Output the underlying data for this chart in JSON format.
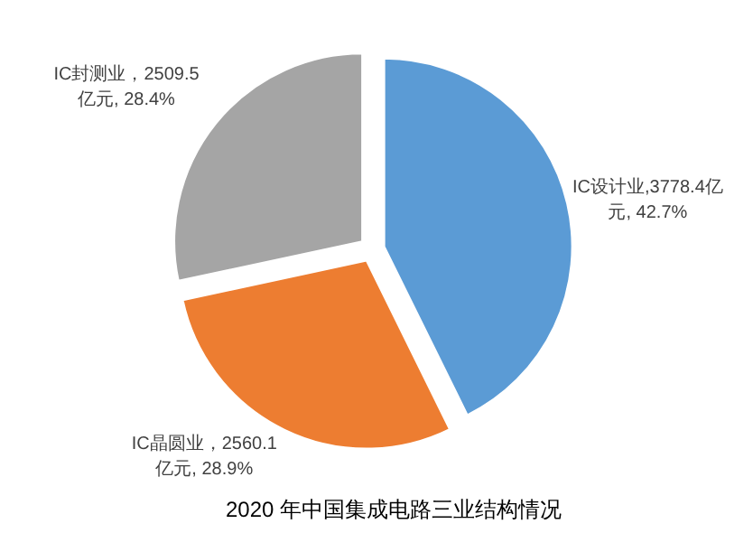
{
  "chart_data": {
    "type": "pie",
    "title": "2020 年中国集成电路三业结构情况",
    "categories": [
      "IC设计业",
      "IC晶圆业",
      "IC封测业"
    ],
    "values": [
      3778.4,
      2560.1,
      2509.5
    ],
    "colors": [
      "#5b9bd5",
      "#ed7d31",
      "#a5a5a5"
    ],
    "value_labels": [
      ",3778.4亿元, 42.7%",
      "，2560.1亿元, 28.9%",
      "，2509.5亿元, 28.4%"
    ],
    "legend": false
  }
}
